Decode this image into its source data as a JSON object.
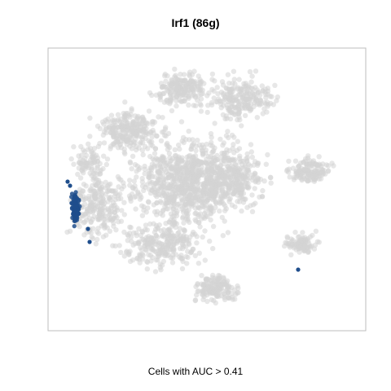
{
  "chart_data": {
    "type": "scatter",
    "title": "Irf1 (86g)",
    "xlabel": "Cells with AUC > 0.41",
    "ylabel": "",
    "grid": false,
    "axis_ticks": false,
    "series": [
      {
        "role": "background cells",
        "color": "#d3d3d3"
      },
      {
        "role": "cells with AUC > 0.41",
        "color": "#1f4e8c"
      }
    ]
  }
}
